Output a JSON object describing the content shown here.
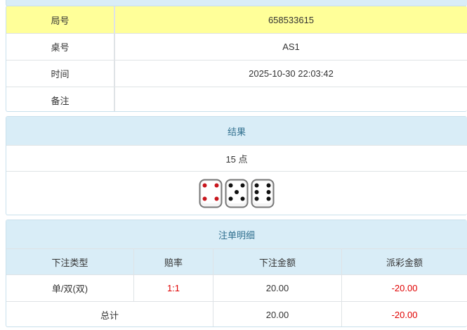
{
  "info": [
    {
      "label": "局号",
      "value": "658533615"
    },
    {
      "label": "桌号",
      "value": "AS1"
    },
    {
      "label": "时间",
      "value": "2025-10-30 22:03:42"
    },
    {
      "label": "备注",
      "value": ""
    }
  ],
  "result": {
    "title": "结果",
    "points": "15 点",
    "dice": [
      4,
      5,
      6
    ]
  },
  "bets": {
    "title": "注单明细",
    "headers": [
      "下注类型",
      "赔率",
      "下注金额",
      "派彩金额"
    ],
    "rows": [
      {
        "type": "单/双(双)",
        "odds": "1:1",
        "amount": "20.00",
        "payout": "-20.00"
      }
    ],
    "total": {
      "label": "总计",
      "amount": "20.00",
      "payout": "-20.00"
    }
  },
  "colors": {
    "highlight": "#ffff99",
    "header": "#d9edf7",
    "negative": "#e00000"
  }
}
